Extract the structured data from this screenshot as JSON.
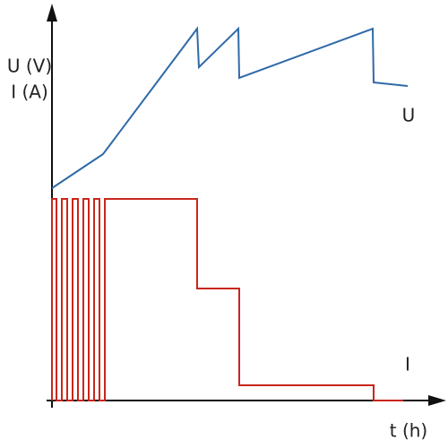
{
  "axes": {
    "y_label_voltage": "U (V)",
    "y_label_current": "I (A)",
    "x_label": "t (h)"
  },
  "curves": {
    "voltage_label": "U",
    "current_label": "I"
  }
}
